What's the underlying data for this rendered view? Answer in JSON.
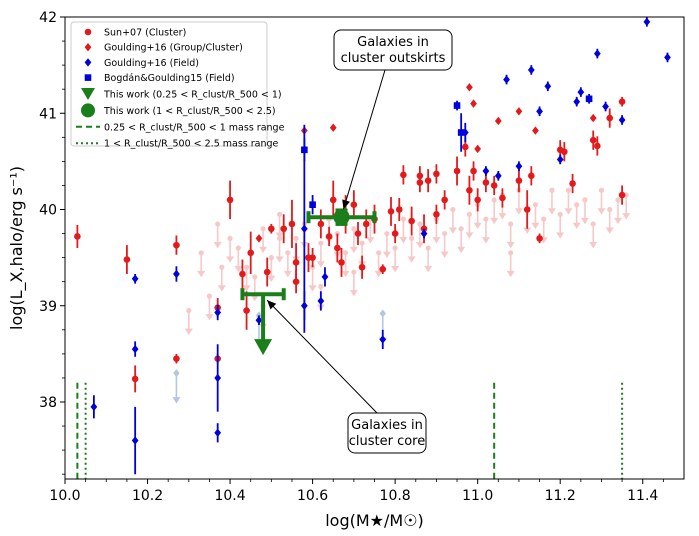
{
  "chart_data": {
    "type": "scatter",
    "xlabel": "log(M★/M☉)",
    "ylabel": "log(L_X,halo/erg s⁻¹)",
    "xlim": [
      10.0,
      11.5
    ],
    "ylim": [
      37.2,
      42.0
    ],
    "xticks": [
      "10.0",
      "10.2",
      "10.4",
      "10.6",
      "10.8",
      "11.0",
      "11.2",
      "11.4"
    ],
    "yticks": [
      "38",
      "39",
      "40",
      "41",
      "42"
    ],
    "colors": {
      "sun": "#e31a1c",
      "goulding": "#0000dd",
      "this_work": "#1a7f1a",
      "faint_red": "#f6c9c9",
      "faint_blue": "#b6c6e2"
    },
    "legend": [
      {
        "key": "sun",
        "label": "Sun+07 (Cluster)"
      },
      {
        "key": "goulding_group",
        "label": "Goulding+16 (Group/Cluster)"
      },
      {
        "key": "goulding_field",
        "label": "Goulding+16 (Field)"
      },
      {
        "key": "bogdan",
        "label": "Bogdán&Goulding15 (Field)"
      },
      {
        "key": "tw_core",
        "label": "This work (0.25 < R_clust/R_500 < 1)"
      },
      {
        "key": "tw_outskirt",
        "label": "This work (1 < R_clust/R_500 < 2.5)"
      },
      {
        "key": "range_core",
        "label": "0.25 < R_clust/R_500 < 1 mass range"
      },
      {
        "key": "range_outskirt",
        "label": "1 < R_clust/R_500 < 2.5 mass range"
      }
    ],
    "annotations": [
      {
        "lines": [
          "Galaxies in",
          "cluster outskirts"
        ],
        "target": [
          10.67,
          39.92
        ]
      },
      {
        "lines": [
          "Galaxies in",
          "cluster core"
        ],
        "target": [
          10.48,
          39.1
        ]
      }
    ],
    "mass_ranges": {
      "core": [
        10.03,
        11.04
      ],
      "outskirt": [
        10.05,
        11.35
      ]
    },
    "this_work": {
      "core": {
        "x": 10.48,
        "y": 39.12,
        "xerr": 0.05,
        "y_upper_limit_to": 38.55
      },
      "outskirt": {
        "x": 10.67,
        "y": 39.92,
        "xerr": 0.08,
        "yerr": 0.07
      }
    },
    "sun07": [
      [
        10.03,
        39.72,
        0.12
      ],
      [
        10.15,
        39.48,
        0.15
      ],
      [
        10.17,
        38.24,
        0.14
      ],
      [
        10.27,
        39.63,
        0.1
      ],
      [
        10.27,
        38.45,
        0.05
      ],
      [
        10.37,
        38.98,
        0.1
      ],
      [
        10.37,
        38.45,
        0.05
      ],
      [
        10.4,
        40.1,
        0.2
      ],
      [
        10.43,
        39.33,
        0.15
      ],
      [
        10.44,
        38.95,
        0.2
      ],
      [
        10.45,
        39.55,
        0.22
      ],
      [
        10.49,
        39.35,
        0.15
      ],
      [
        10.5,
        39.8,
        0.05
      ],
      [
        10.53,
        39.8,
        0.15
      ],
      [
        10.55,
        39.85,
        0.25
      ],
      [
        10.56,
        39.45,
        0.2
      ],
      [
        10.6,
        39.5,
        0.1
      ],
      [
        10.62,
        39.85,
        0.15
      ],
      [
        10.64,
        39.72,
        0.1
      ],
      [
        10.65,
        40.1,
        0.2
      ],
      [
        10.66,
        39.6,
        0.15
      ],
      [
        10.67,
        39.45,
        0.15
      ],
      [
        10.68,
        39.95,
        0.2
      ],
      [
        10.7,
        40.05,
        0.15
      ],
      [
        10.71,
        39.75,
        0.12
      ],
      [
        10.72,
        39.4,
        0.12
      ],
      [
        10.73,
        39.85,
        0.15
      ],
      [
        10.75,
        39.9,
        0.15
      ],
      [
        10.77,
        39.38,
        0.05
      ],
      [
        10.79,
        39.98,
        0.15
      ],
      [
        10.8,
        39.75,
        0.1
      ],
      [
        10.81,
        40.0,
        0.12
      ],
      [
        10.82,
        40.36,
        0.1
      ],
      [
        10.84,
        39.88,
        0.15
      ],
      [
        10.86,
        40.28,
        0.1
      ],
      [
        10.86,
        40.35,
        0.1
      ],
      [
        10.87,
        39.8,
        0.15
      ],
      [
        10.88,
        40.3,
        0.12
      ],
      [
        10.9,
        40.37,
        0.1
      ],
      [
        10.92,
        40.1,
        0.1
      ],
      [
        10.95,
        40.4,
        0.15
      ],
      [
        10.97,
        40.65,
        0.1
      ],
      [
        10.98,
        40.2,
        0.15
      ],
      [
        10.99,
        40.4,
        0.1
      ],
      [
        11.0,
        40.1,
        0.12
      ],
      [
        11.02,
        40.28,
        0.1
      ],
      [
        11.04,
        40.25,
        0.1
      ],
      [
        11.06,
        40.12,
        0.1
      ],
      [
        11.1,
        40.3,
        0.12
      ],
      [
        11.12,
        40.0,
        0.2
      ],
      [
        11.13,
        40.35,
        0.1
      ],
      [
        11.15,
        39.7,
        0.05
      ],
      [
        11.2,
        40.62,
        0.1
      ],
      [
        11.21,
        40.6,
        0.1
      ],
      [
        11.23,
        40.27,
        0.1
      ],
      [
        11.28,
        40.72,
        0.1
      ],
      [
        11.29,
        40.66,
        0.1
      ],
      [
        11.32,
        40.95,
        0.1
      ],
      [
        11.35,
        41.12,
        0.05
      ],
      [
        11.35,
        40.15,
        0.1
      ],
      [
        10.56,
        39.25,
        0.12
      ],
      [
        10.59,
        39.5,
        0.15
      ],
      [
        10.9,
        39.95,
        0.1
      ]
    ],
    "goulding_group": [
      [
        10.47,
        39.7
      ],
      [
        10.58,
        40.82
      ],
      [
        10.65,
        40.85
      ],
      [
        10.95,
        41.08
      ],
      [
        10.98,
        41.27
      ],
      [
        10.99,
        41.1
      ],
      [
        11.0,
        40.63
      ],
      [
        11.05,
        40.92
      ],
      [
        11.1,
        41.02
      ],
      [
        11.14,
        40.82
      ],
      [
        11.28,
        40.95
      ]
    ],
    "goulding_field": [
      [
        10.07,
        37.95,
        0.12
      ],
      [
        10.17,
        39.28,
        0.05
      ],
      [
        10.17,
        38.55,
        0.08
      ],
      [
        10.17,
        37.6,
        0.35
      ],
      [
        10.27,
        39.33,
        0.08
      ],
      [
        10.37,
        38.93,
        0.08
      ],
      [
        10.37,
        38.25,
        0.35
      ],
      [
        10.37,
        37.68,
        0.1
      ],
      [
        10.47,
        38.85,
        0.05
      ],
      [
        10.58,
        39.8,
        1.08
      ],
      [
        10.58,
        39.0,
        0.15
      ],
      [
        10.62,
        39.05,
        0.1
      ],
      [
        10.63,
        39.3,
        0.1
      ],
      [
        10.77,
        38.65,
        0.1
      ],
      [
        10.87,
        39.75,
        0.05
      ],
      [
        10.97,
        40.8,
        0.1
      ],
      [
        11.05,
        40.35,
        0.05
      ],
      [
        11.07,
        41.35,
        0.05
      ],
      [
        11.1,
        40.45,
        0.05
      ],
      [
        11.13,
        41.45,
        0.05
      ],
      [
        11.15,
        41.02,
        0.05
      ],
      [
        11.17,
        41.28,
        0.05
      ],
      [
        11.2,
        40.52,
        0.05
      ],
      [
        11.24,
        41.12,
        0.05
      ],
      [
        11.25,
        41.22,
        0.05
      ],
      [
        11.29,
        41.62,
        0.05
      ],
      [
        11.31,
        41.07,
        0.05
      ],
      [
        11.35,
        40.93,
        0.05
      ],
      [
        11.41,
        41.95,
        0.05
      ],
      [
        11.46,
        41.58,
        0.05
      ],
      [
        11.02,
        40.4,
        0.05
      ]
    ],
    "bogdan": [
      [
        10.58,
        40.62,
        0.12
      ],
      [
        10.6,
        40.05,
        0.1
      ],
      [
        10.95,
        41.08,
        0.05
      ],
      [
        10.96,
        40.8,
        0.2
      ],
      [
        11.27,
        41.15,
        0.05
      ]
    ],
    "faint_upper_limits": [
      [
        10.33,
        39.55
      ],
      [
        10.35,
        39.1
      ],
      [
        10.38,
        39.4
      ],
      [
        10.4,
        39.7
      ],
      [
        10.42,
        39.6
      ],
      [
        10.44,
        39.4
      ],
      [
        10.46,
        39.3
      ],
      [
        10.48,
        39.8
      ],
      [
        10.5,
        39.5
      ],
      [
        10.52,
        39.7
      ],
      [
        10.54,
        39.55
      ],
      [
        10.56,
        39.7
      ],
      [
        10.58,
        39.85
      ],
      [
        10.6,
        39.4
      ],
      [
        10.62,
        39.65
      ],
      [
        10.64,
        39.9
      ],
      [
        10.66,
        39.75
      ],
      [
        10.68,
        39.55
      ],
      [
        10.7,
        39.8
      ],
      [
        10.72,
        39.65
      ],
      [
        10.74,
        39.9
      ],
      [
        10.76,
        39.55
      ],
      [
        10.78,
        39.75
      ],
      [
        10.8,
        39.6
      ],
      [
        10.82,
        39.9
      ],
      [
        10.84,
        39.7
      ],
      [
        10.86,
        39.85
      ],
      [
        10.88,
        39.6
      ],
      [
        10.9,
        39.9
      ],
      [
        10.92,
        39.75
      ],
      [
        10.94,
        40.0
      ],
      [
        10.96,
        39.8
      ],
      [
        10.98,
        39.95
      ],
      [
        11.0,
        40.05
      ],
      [
        11.02,
        39.9
      ],
      [
        11.04,
        40.1
      ],
      [
        11.06,
        40.15
      ],
      [
        11.08,
        39.85
      ],
      [
        11.1,
        40.2
      ],
      [
        11.12,
        40.0
      ],
      [
        11.14,
        40.05
      ],
      [
        11.16,
        39.9
      ],
      [
        11.18,
        40.2
      ],
      [
        11.2,
        39.95
      ],
      [
        11.22,
        40.2
      ],
      [
        11.24,
        40.05
      ],
      [
        11.26,
        40.1
      ],
      [
        11.28,
        39.85
      ],
      [
        11.3,
        40.2
      ],
      [
        11.32,
        40.0
      ],
      [
        11.34,
        40.1
      ],
      [
        11.36,
        40.15
      ],
      [
        10.3,
        38.95
      ],
      [
        10.37,
        39.85
      ],
      [
        10.48,
        39.0
      ],
      [
        10.52,
        39.95
      ],
      [
        11.08,
        39.55
      ],
      [
        10.62,
        39.2
      ],
      [
        10.7,
        39.35
      ]
    ],
    "faint_blue_limits": [
      [
        10.27,
        38.3
      ],
      [
        10.47,
        38.9
      ],
      [
        10.77,
        38.92
      ]
    ]
  }
}
